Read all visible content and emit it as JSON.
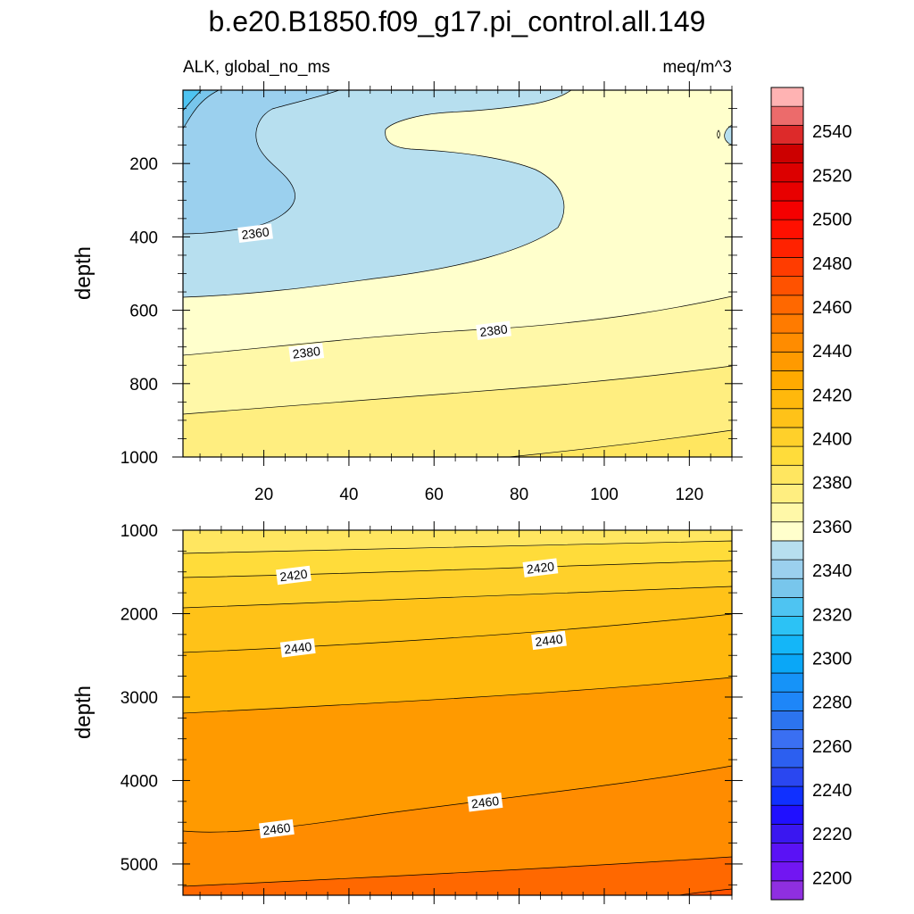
{
  "chart_data": {
    "type": "contour",
    "title": "b.e20.B1850.f09_g17.pi_control.all.149",
    "left_subtitle": "ALK, global_no_ms",
    "right_subtitle": "meq/m^3",
    "xlabel": "",
    "ylabel": "depth",
    "x_range": [
      1,
      130
    ],
    "x_ticks": [
      20,
      40,
      60,
      80,
      100,
      120
    ],
    "panels": [
      {
        "name": "upper",
        "ylabel": "depth",
        "y_range": [
          0,
          1000
        ],
        "y_ticks": [
          200,
          400,
          600,
          800,
          1000
        ],
        "y_inverted": true,
        "contour_labels": [
          {
            "x": 18,
            "y": 390,
            "text": "2360"
          },
          {
            "x": 30,
            "y": 715,
            "text": "2380"
          },
          {
            "x": 74,
            "y": 655,
            "text": "2380"
          }
        ]
      },
      {
        "name": "lower",
        "ylabel": "depth",
        "y_range": [
          1000,
          5375
        ],
        "y_ticks": [
          1000,
          2000,
          3000,
          4000,
          5000
        ],
        "y_inverted": true,
        "contour_labels": [
          {
            "x": 27,
            "y": 1540,
            "text": "2420"
          },
          {
            "x": 85,
            "y": 1450,
            "text": "2420"
          },
          {
            "x": 28,
            "y": 2410,
            "text": "2440"
          },
          {
            "x": 87,
            "y": 2320,
            "text": "2440"
          },
          {
            "x": 23,
            "y": 4580,
            "text": "2460"
          },
          {
            "x": 72,
            "y": 4260,
            "text": "2460"
          }
        ]
      }
    ],
    "colorbar": {
      "levels": [
        2195,
        2200,
        2205,
        2210,
        2215,
        2220,
        2225,
        2230,
        2235,
        2240,
        2245,
        2250,
        2255,
        2260,
        2265,
        2270,
        2275,
        2280,
        2285,
        2290,
        2295,
        2300,
        2305,
        2310,
        2315,
        2320,
        2325,
        2330,
        2335,
        2340,
        2345,
        2350,
        2355,
        2360,
        2365,
        2370,
        2375,
        2380,
        2385,
        2390,
        2395,
        2400,
        2405,
        2410,
        2415,
        2420,
        2425,
        2430,
        2435,
        2440,
        2445,
        2450,
        2455,
        2460,
        2465,
        2470,
        2475,
        2480,
        2485,
        2490,
        2495,
        2500,
        2505,
        2510,
        2515,
        2520,
        2525,
        2530,
        2535,
        2540,
        2545,
        2550,
        2555,
        2560
      ],
      "tick_labels": [
        2200,
        2220,
        2240,
        2260,
        2280,
        2300,
        2320,
        2340,
        2360,
        2380,
        2400,
        2420,
        2440,
        2460,
        2480,
        2500,
        2520,
        2540
      ],
      "colors": [
        "#8f2fe0",
        "#7216f2",
        "#5a12f5",
        "#3a17f0",
        "#2010ff",
        "#1030ff",
        "#2a47f0",
        "#2c5ff0",
        "#3a6ff2",
        "#2c74ef",
        "#1e86f8",
        "#1693f8",
        "#0aa7f7",
        "#14b6f8",
        "#2cc2f5",
        "#4ec4f2",
        "#78c6ec",
        "#9bd0ee",
        "#b7dfef",
        "#ffffcc",
        "#fff8a8",
        "#ffee80",
        "#ffe660",
        "#ffdc3a",
        "#ffd02a",
        "#ffc218",
        "#ffb80c",
        "#ffaa00",
        "#ff9a00",
        "#ff8c00",
        "#ff7b00",
        "#ff6800",
        "#ff5200",
        "#ff3c00",
        "#ff2200",
        "#ff1000",
        "#f50000",
        "#e80000",
        "#dc0000",
        "#cc0000",
        "#dd2a2a",
        "#ec6b6b",
        "#ffb3b3"
      ]
    }
  }
}
